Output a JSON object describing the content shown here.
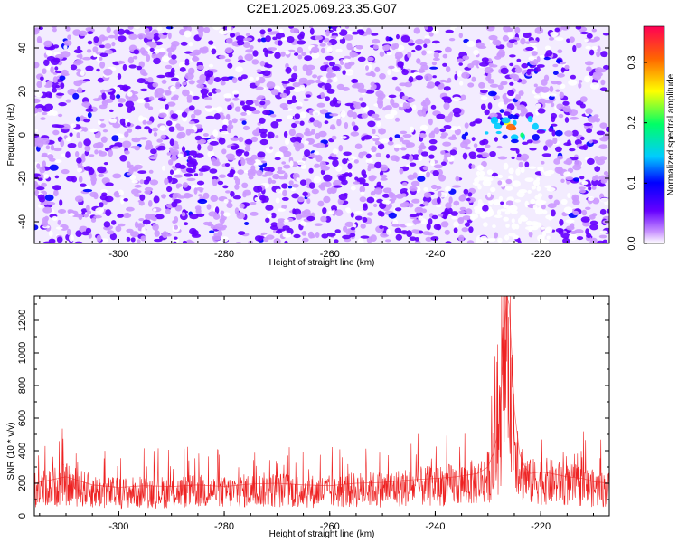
{
  "title": "C2E1.2025.069.23.35.G07",
  "chart_data": [
    {
      "type": "heatmap",
      "xlabel": "Height of straight line (km)",
      "ylabel": "Frequency (Hz)",
      "xlim": [
        -316,
        -207
      ],
      "ylim": [
        -50,
        50
      ],
      "xticks": [
        -300,
        -280,
        -260,
        -240,
        -220
      ],
      "yticks": [
        -40,
        -20,
        0,
        20,
        40
      ],
      "colorbar": {
        "label": "Normalized spectral amplitude",
        "range": [
          0,
          0.36
        ],
        "ticks": [
          0.0,
          0.1,
          0.2,
          0.3
        ],
        "colors": [
          "#ffffff",
          "#cc99ff",
          "#6600ff",
          "#0000ff",
          "#00ccff",
          "#00ff66",
          "#ffff00",
          "#ff6600",
          "#ff0055"
        ]
      },
      "hotspot": {
        "x_range": [
          -234,
          -208
        ],
        "y_range": [
          -10,
          12
        ],
        "peak_x": -225,
        "peak_y": 3,
        "peak_amplitude": 0.33
      },
      "background_amplitude": 0.05
    },
    {
      "type": "line",
      "xlabel": "Height of straight line (km)",
      "ylabel": "SNR (10 * v/v)",
      "xlim": [
        -316,
        -207
      ],
      "ylim": [
        0,
        1350
      ],
      "xticks": [
        -300,
        -280,
        -260,
        -240,
        -220
      ],
      "yticks": [
        0,
        200,
        400,
        600,
        800,
        1000,
        1200
      ],
      "line_color": "#ee2222",
      "series": [
        {
          "x": [
            -316,
            -310,
            -305,
            -300,
            -295,
            -290,
            -285,
            -280,
            -275,
            -270,
            -265,
            -260,
            -255,
            -250,
            -245,
            -240,
            -236,
            -232,
            -230,
            -229,
            -228,
            -227.5,
            -227,
            -226.5,
            -226,
            -225.5,
            -225,
            -224,
            -223,
            -222,
            -220,
            -218,
            -215,
            -212,
            -210,
            -207
          ],
          "y": [
            200,
            240,
            190,
            175,
            185,
            180,
            190,
            180,
            195,
            200,
            190,
            185,
            200,
            205,
            220,
            230,
            240,
            260,
            300,
            380,
            520,
            750,
            1050,
            1350,
            1300,
            1000,
            650,
            380,
            300,
            260,
            270,
            260,
            240,
            230,
            210,
            200
          ]
        }
      ]
    }
  ]
}
